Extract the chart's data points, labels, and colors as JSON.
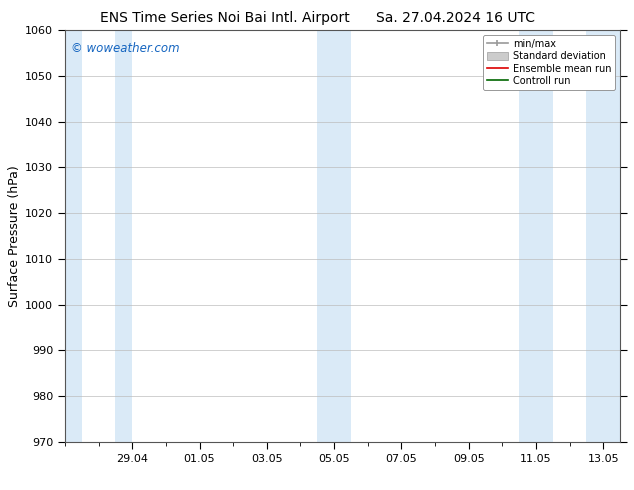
{
  "title_left": "ENS Time Series Noi Bai Intl. Airport",
  "title_right": "Sa. 27.04.2024 16 UTC",
  "ylabel": "Surface Pressure (hPa)",
  "watermark": "© woweather.com",
  "watermark_color": "#1565c0",
  "ylim": [
    970,
    1060
  ],
  "yticks": [
    970,
    980,
    990,
    1000,
    1010,
    1020,
    1030,
    1040,
    1050,
    1060
  ],
  "xtick_labels": [
    "29.04",
    "01.05",
    "03.05",
    "05.05",
    "07.05",
    "09.05",
    "11.05",
    "13.05"
  ],
  "xmin": 0.0,
  "xmax": 16.5,
  "shaded_bands": [
    {
      "xmin": 0.0,
      "xmax": 0.7,
      "color": "#daeaf7"
    },
    {
      "xmin": 1.3,
      "xmax": 2.0,
      "color": "#daeaf7"
    },
    {
      "xmin": 7.3,
      "xmax": 8.7,
      "color": "#daeaf7"
    },
    {
      "xmin": 13.3,
      "xmax": 16.5,
      "color": "#daeaf7"
    }
  ],
  "bg_color": "#ffffff",
  "plot_bg_color": "#ffffff",
  "legend_labels": [
    "min/max",
    "Standard deviation",
    "Ensemble mean run",
    "Controll run"
  ],
  "legend_colors_line": [
    "#999999",
    "#bbbbbb",
    "#dd0000",
    "#006600"
  ],
  "title_fontsize": 10,
  "label_fontsize": 9,
  "tick_fontsize": 8,
  "grid_color": "#bbbbbb",
  "grid_alpha": 0.8,
  "spine_color": "#555555"
}
